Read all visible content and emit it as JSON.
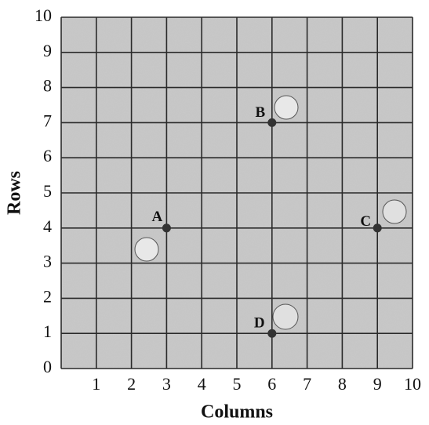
{
  "chart_data": {
    "type": "scatter",
    "xlabel": "Columns",
    "ylabel": "Rows",
    "xlim": [
      0,
      10
    ],
    "ylim": [
      0,
      10
    ],
    "xticks": [
      1,
      2,
      3,
      4,
      5,
      6,
      7,
      8,
      9,
      10
    ],
    "yticks": [
      0,
      1,
      2,
      3,
      4,
      5,
      6,
      7,
      8,
      9,
      10
    ],
    "grid": true,
    "series": [
      {
        "x": [
          3,
          6,
          9,
          6
        ],
        "values": [
          4,
          7,
          4,
          1
        ],
        "point_labels": [
          "A",
          "B",
          "C",
          "D"
        ],
        "color": "#333333"
      }
    ]
  }
}
